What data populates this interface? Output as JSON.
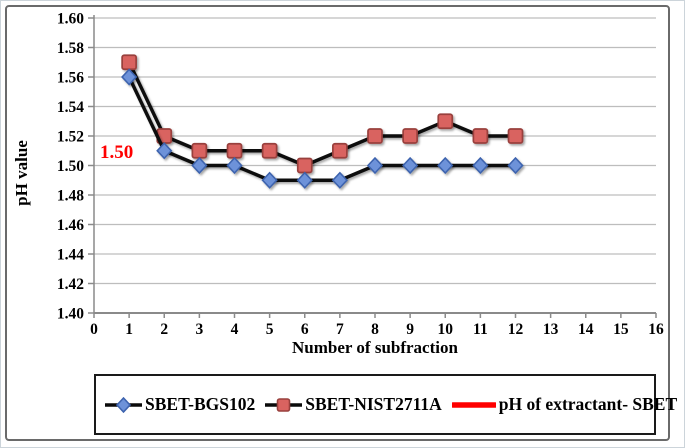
{
  "chart_data": {
    "type": "line",
    "title": "",
    "xlabel": "Number of subfraction",
    "ylabel": "pH value",
    "xlim": [
      0,
      16
    ],
    "ylim": [
      1.4,
      1.6
    ],
    "xticks": [
      0,
      1,
      2,
      3,
      4,
      5,
      6,
      7,
      8,
      9,
      10,
      11,
      12,
      13,
      14,
      15,
      16
    ],
    "yticks": [
      1.4,
      1.42,
      1.44,
      1.46,
      1.48,
      1.5,
      1.52,
      1.54,
      1.56,
      1.58,
      1.6
    ],
    "grid": "horizontal",
    "legend_position": "bottom-boxed",
    "x": [
      1,
      2,
      3,
      4,
      5,
      6,
      7,
      8,
      9,
      10,
      11,
      12
    ],
    "series": [
      {
        "name": "SBET-BGS102",
        "marker": "diamond",
        "marker_fill": "#6D92D9",
        "marker_stroke": "#3D63AE",
        "line_color": "#0a0a0a",
        "values": [
          1.56,
          1.51,
          1.5,
          1.5,
          1.49,
          1.49,
          1.49,
          1.5,
          1.5,
          1.5,
          1.5,
          1.5
        ]
      },
      {
        "name": "SBET-NIST2711A",
        "marker": "square",
        "marker_fill": "#D96360",
        "marker_stroke": "#99403D",
        "line_color": "#0a0a0a",
        "values": [
          1.57,
          1.52,
          1.51,
          1.51,
          1.51,
          1.5,
          1.51,
          1.52,
          1.52,
          1.53,
          1.52,
          1.52
        ]
      }
    ],
    "reference_line": {
      "name": "pH of extractant- SBET",
      "value": 1.5,
      "x_start": 1,
      "x_end": 12,
      "color": "#FF0000",
      "annotation": "1.50",
      "annotation_color": "#FF0000"
    },
    "colors": {
      "gridline": "#bdbdbd",
      "axis": "#8a8a8a",
      "tick_label": "#000000"
    }
  }
}
